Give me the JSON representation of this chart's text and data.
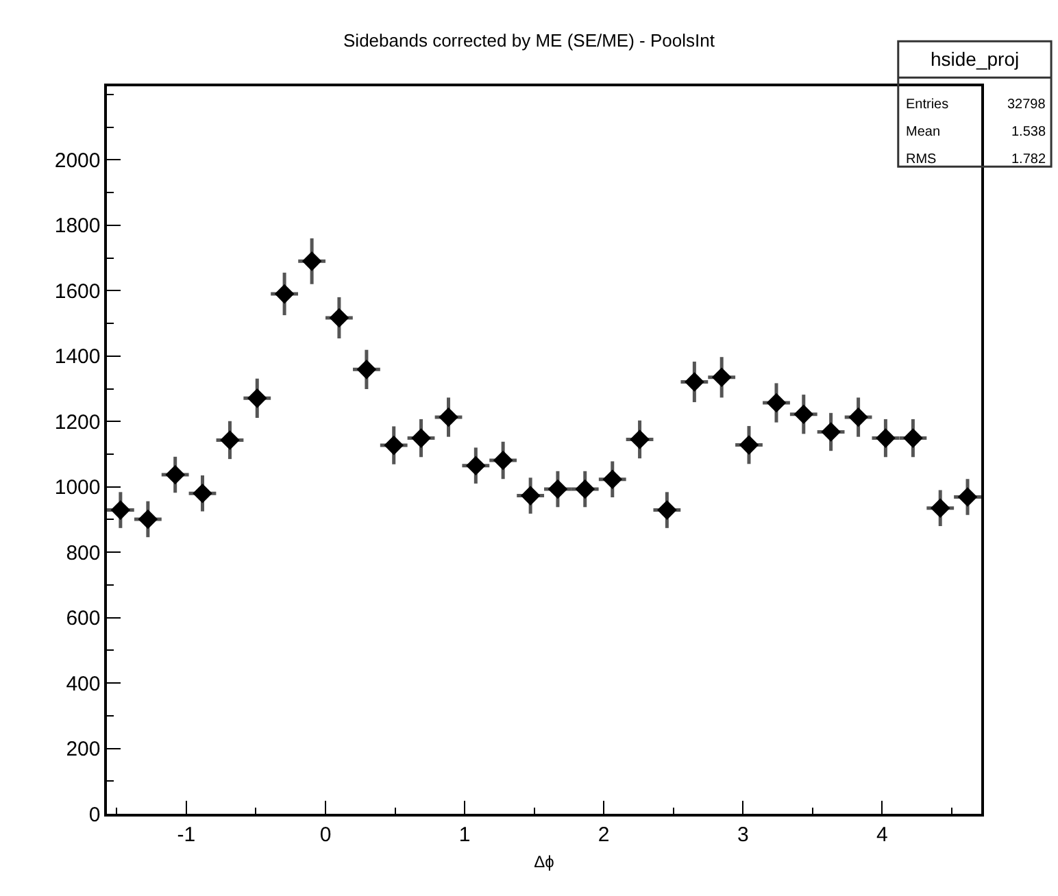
{
  "chart_data": {
    "type": "scatter",
    "title": "Sidebands corrected by ME (SE/ME) - PoolsInt",
    "xlabel": "Δϕ",
    "x": [
      -1.473,
      -1.276,
      -1.08,
      -0.884,
      -0.687,
      -0.491,
      -0.295,
      -0.098,
      0.098,
      0.295,
      0.491,
      0.687,
      0.884,
      1.08,
      1.276,
      1.473,
      1.669,
      1.865,
      2.062,
      2.258,
      2.454,
      2.651,
      2.847,
      3.043,
      3.24,
      3.436,
      3.632,
      3.829,
      4.025,
      4.222,
      4.418,
      4.614
    ],
    "series": [
      {
        "color": "#000000",
        "values": [
          929,
          901,
          1037,
          980,
          1143,
          1271,
          1590,
          1690,
          1517,
          1359,
          1127,
          1149,
          1213,
          1065,
          1081,
          973,
          993,
          993,
          1023,
          1145,
          929,
          1321,
          1335,
          1128,
          1257,
          1222,
          1168,
          1213,
          1149,
          1149,
          935,
          969
        ],
        "errors": [
          55,
          55,
          55,
          55,
          58,
          60,
          65,
          70,
          63,
          60,
          58,
          58,
          60,
          55,
          57,
          55,
          55,
          55,
          55,
          58,
          55,
          62,
          62,
          58,
          60,
          60,
          58,
          60,
          58,
          58,
          55,
          55
        ],
        "xerrors": [
          0.098,
          0.098,
          0.098,
          0.098,
          0.098,
          0.098,
          0.098,
          0.098,
          0.098,
          0.098,
          0.098,
          0.098,
          0.098,
          0.098,
          0.098,
          0.098,
          0.098,
          0.098,
          0.098,
          0.098,
          0.098,
          0.098,
          0.098,
          0.098,
          0.098,
          0.098,
          0.098,
          0.098,
          0.098,
          0.098,
          0.098,
          0.098
        ]
      }
    ],
    "marker": "diamond",
    "xlim": [
      -1.5708,
      4.7124
    ],
    "ylim": [
      0,
      2225
    ],
    "xticks": [
      -1,
      0,
      1,
      2,
      3,
      4
    ],
    "yticks": [
      0,
      200,
      400,
      600,
      800,
      1000,
      1200,
      1400,
      1600,
      1800,
      2000
    ],
    "annotations": [
      "hside_proj",
      "Entries",
      "32798",
      "Mean",
      "1.538",
      "RMS",
      "1.782"
    ]
  }
}
